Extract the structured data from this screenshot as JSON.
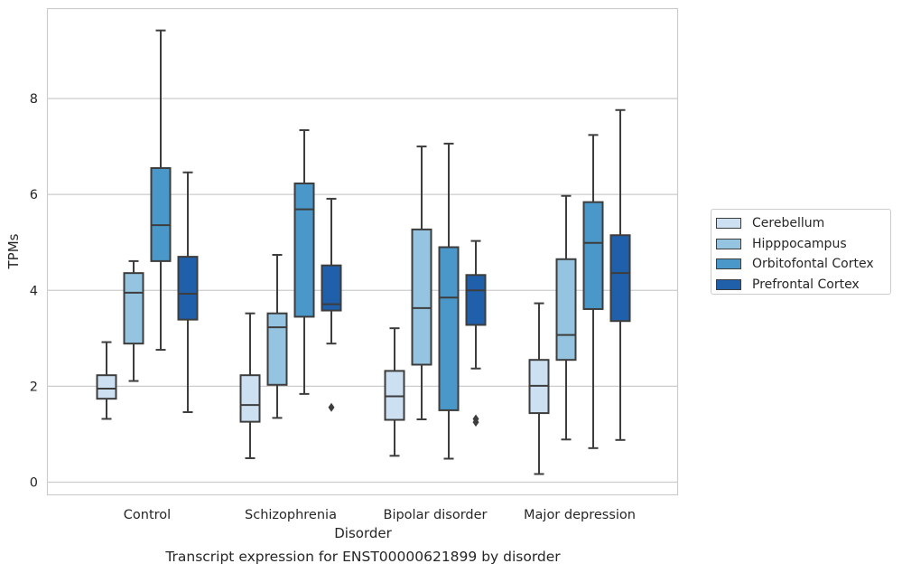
{
  "chart_data": {
    "type": "boxplot",
    "title": "Transcript expression for ENST00000621899 by disorder",
    "xlabel": "Disorder",
    "ylabel": "TPMs",
    "ylim": [
      -0.25,
      9.9
    ],
    "yticks": [
      "0",
      "2",
      "4",
      "6",
      "8"
    ],
    "grid": "horizontal",
    "legend_placement": "right-center",
    "categories": [
      "Control",
      "Schizophrenia",
      "Bipolar disorder",
      "Major depression"
    ],
    "series": [
      {
        "name": "Cerebellum",
        "color": "#cde0f1",
        "boxes": [
          {
            "whislo": 1.32,
            "q1": 1.74,
            "med": 1.95,
            "q3": 2.23,
            "whishi": 2.92,
            "fliers": []
          },
          {
            "whislo": 0.5,
            "q1": 1.26,
            "med": 1.61,
            "q3": 2.23,
            "whishi": 3.52,
            "fliers": []
          },
          {
            "whislo": 0.55,
            "q1": 1.3,
            "med": 1.79,
            "q3": 2.32,
            "whishi": 3.21,
            "fliers": []
          },
          {
            "whislo": 0.17,
            "q1": 1.44,
            "med": 2.01,
            "q3": 2.55,
            "whishi": 3.73,
            "fliers": []
          }
        ]
      },
      {
        "name": "Hipppocampus",
        "color": "#94c4df",
        "boxes": [
          {
            "whislo": 2.11,
            "q1": 2.89,
            "med": 3.95,
            "q3": 4.36,
            "whishi": 4.61,
            "fliers": []
          },
          {
            "whislo": 1.34,
            "q1": 2.03,
            "med": 3.23,
            "q3": 3.52,
            "whishi": 4.74,
            "fliers": []
          },
          {
            "whislo": 1.31,
            "q1": 2.45,
            "med": 3.63,
            "q3": 5.27,
            "whishi": 7.0,
            "fliers": []
          },
          {
            "whislo": 0.89,
            "q1": 2.55,
            "med": 3.07,
            "q3": 4.65,
            "whishi": 5.97,
            "fliers": []
          }
        ]
      },
      {
        "name": "Orbitofontal Cortex",
        "color": "#4a98c9",
        "boxes": [
          {
            "whislo": 2.76,
            "q1": 4.61,
            "med": 5.36,
            "q3": 6.55,
            "whishi": 9.42,
            "fliers": []
          },
          {
            "whislo": 1.84,
            "q1": 3.45,
            "med": 5.69,
            "q3": 6.23,
            "whishi": 7.34,
            "fliers": []
          },
          {
            "whislo": 0.49,
            "q1": 1.5,
            "med": 3.85,
            "q3": 4.9,
            "whishi": 7.06,
            "fliers": []
          },
          {
            "whislo": 0.71,
            "q1": 3.61,
            "med": 4.99,
            "q3": 5.84,
            "whishi": 7.24,
            "fliers": []
          }
        ]
      },
      {
        "name": "Prefrontal Cortex",
        "color": "#2060aa",
        "boxes": [
          {
            "whislo": 1.46,
            "q1": 3.39,
            "med": 3.93,
            "q3": 4.7,
            "whishi": 6.46,
            "fliers": []
          },
          {
            "whislo": 2.89,
            "q1": 3.58,
            "med": 3.71,
            "q3": 4.52,
            "whishi": 5.91,
            "fliers": [
              1.56
            ]
          },
          {
            "whislo": 2.37,
            "q1": 3.28,
            "med": 4.0,
            "q3": 4.32,
            "whishi": 5.03,
            "fliers": [
              1.25,
              1.32
            ]
          },
          {
            "whislo": 0.88,
            "q1": 3.36,
            "med": 4.36,
            "q3": 5.15,
            "whishi": 7.76,
            "fliers": []
          }
        ]
      }
    ]
  }
}
